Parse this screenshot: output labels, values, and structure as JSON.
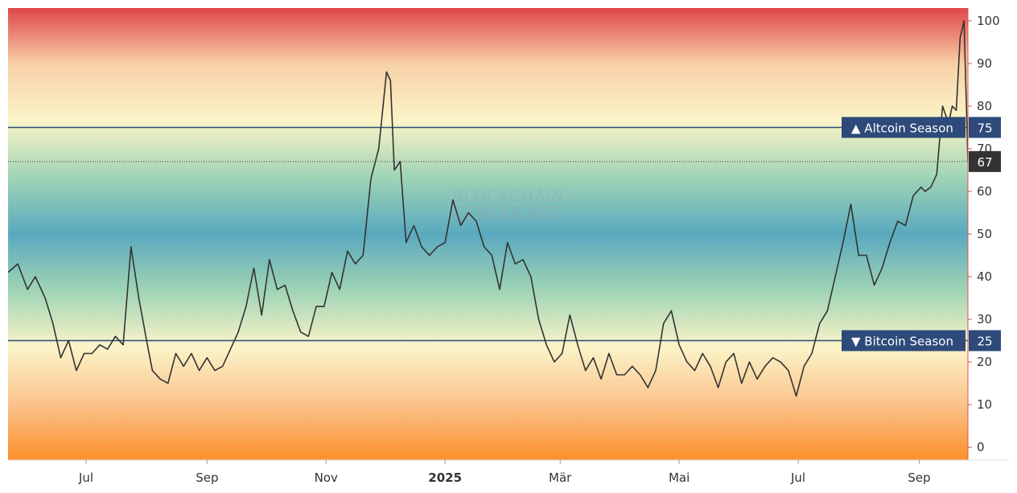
{
  "chart_data": {
    "type": "line",
    "watermark": [
      "BLOCKCHAIN",
      "CENTER.NET"
    ],
    "ylim": [
      -3,
      103
    ],
    "y_ticks": [
      0,
      10,
      20,
      30,
      40,
      50,
      60,
      70,
      80,
      90,
      100
    ],
    "x_range": [
      "2024-05-22",
      "2025-09-26"
    ],
    "x_ticks": [
      {
        "label": "Jul",
        "date": "2024-07-01",
        "bold": false
      },
      {
        "label": "Sep",
        "date": "2024-09-01",
        "bold": false
      },
      {
        "label": "Nov",
        "date": "2024-11-01",
        "bold": false
      },
      {
        "label": "2025",
        "date": "2025-01-01",
        "bold": true
      },
      {
        "label": "Mär",
        "date": "2025-03-01",
        "bold": false
      },
      {
        "label": "Mai",
        "date": "2025-05-01",
        "bold": false
      },
      {
        "label": "Jul",
        "date": "2025-07-01",
        "bold": false
      },
      {
        "label": "Sep",
        "date": "2025-09-01",
        "bold": false
      }
    ],
    "reference_lines": [
      {
        "value": 75,
        "label": "▲ Altcoin Season",
        "value_label": "75"
      },
      {
        "value": 25,
        "label": "▼ Bitcoin Season",
        "value_label": "25"
      }
    ],
    "current_value": {
      "value": 67,
      "label": "67"
    },
    "colors": {
      "line": "#333333",
      "reference": "#2d4a7a",
      "badge": "#2d4a7a",
      "current_badge": "#333333",
      "gradient": [
        "#e0464a",
        "#f7d1a8",
        "#fbf4c8",
        "#9fd4b5",
        "#5aa9bf",
        "#9fd4b5",
        "#fbf4c8",
        "#fbc38d",
        "#fb8f2a"
      ]
    },
    "series": [
      {
        "x": [
          "2024-05-22",
          "2024-05-27",
          "2024-06-01",
          "2024-06-05",
          "2024-06-10",
          "2024-06-14",
          "2024-06-18",
          "2024-06-22",
          "2024-06-26",
          "2024-06-30",
          "2024-07-04",
          "2024-07-08",
          "2024-07-12",
          "2024-07-16",
          "2024-07-20",
          "2024-07-24",
          "2024-07-28",
          "2024-08-01",
          "2024-08-04",
          "2024-08-08",
          "2024-08-12",
          "2024-08-16",
          "2024-08-20",
          "2024-08-24",
          "2024-08-28",
          "2024-09-01",
          "2024-09-05",
          "2024-09-09",
          "2024-09-13",
          "2024-09-17",
          "2024-09-21",
          "2024-09-25",
          "2024-09-29",
          "2024-10-03",
          "2024-10-07",
          "2024-10-11",
          "2024-10-15",
          "2024-10-19",
          "2024-10-23",
          "2024-10-27",
          "2024-10-31",
          "2024-11-04",
          "2024-11-08",
          "2024-11-12",
          "2024-11-16",
          "2024-11-20",
          "2024-11-24",
          "2024-11-28",
          "2024-12-02",
          "2024-12-04",
          "2024-12-06",
          "2024-12-09",
          "2024-12-12",
          "2024-12-16",
          "2024-12-20",
          "2024-12-24",
          "2024-12-28",
          "2025-01-01",
          "2025-01-05",
          "2025-01-09",
          "2025-01-13",
          "2025-01-17",
          "2025-01-21",
          "2025-01-25",
          "2025-01-29",
          "2025-02-02",
          "2025-02-06",
          "2025-02-10",
          "2025-02-14",
          "2025-02-18",
          "2025-02-22",
          "2025-02-26",
          "2025-03-02",
          "2025-03-06",
          "2025-03-10",
          "2025-03-14",
          "2025-03-18",
          "2025-03-22",
          "2025-03-26",
          "2025-03-30",
          "2025-04-03",
          "2025-04-07",
          "2025-04-11",
          "2025-04-15",
          "2025-04-19",
          "2025-04-23",
          "2025-04-27",
          "2025-05-01",
          "2025-05-05",
          "2025-05-09",
          "2025-05-13",
          "2025-05-17",
          "2025-05-21",
          "2025-05-25",
          "2025-05-29",
          "2025-06-02",
          "2025-06-06",
          "2025-06-10",
          "2025-06-14",
          "2025-06-18",
          "2025-06-22",
          "2025-06-26",
          "2025-06-30",
          "2025-07-04",
          "2025-07-08",
          "2025-07-12",
          "2025-07-16",
          "2025-07-20",
          "2025-07-24",
          "2025-07-28",
          "2025-08-01",
          "2025-08-05",
          "2025-08-09",
          "2025-08-13",
          "2025-08-17",
          "2025-08-21",
          "2025-08-25",
          "2025-08-29",
          "2025-09-02",
          "2025-09-04",
          "2025-09-07",
          "2025-09-10",
          "2025-09-13",
          "2025-09-16",
          "2025-09-18",
          "2025-09-20",
          "2025-09-22",
          "2025-09-24",
          "2025-09-26"
        ],
        "y": [
          41,
          43,
          37,
          40,
          35,
          29,
          21,
          25,
          18,
          22,
          22,
          24,
          23,
          26,
          24,
          47,
          35,
          25,
          18,
          16,
          15,
          22,
          19,
          22,
          18,
          21,
          18,
          19,
          23,
          27,
          33,
          42,
          31,
          44,
          37,
          38,
          32,
          27,
          26,
          33,
          33,
          41,
          37,
          46,
          43,
          45,
          63,
          70,
          88,
          86,
          65,
          67,
          48,
          52,
          47,
          45,
          47,
          48,
          58,
          52,
          55,
          53,
          47,
          45,
          37,
          48,
          43,
          44,
          40,
          30,
          24,
          20,
          22,
          31,
          24,
          18,
          21,
          16,
          22,
          17,
          17,
          19,
          17,
          14,
          18,
          29,
          32,
          24,
          20,
          18,
          22,
          19,
          14,
          20,
          22,
          15,
          20,
          16,
          19,
          21,
          20,
          18,
          12,
          19,
          22,
          29,
          32,
          40,
          48,
          57,
          45,
          45,
          38,
          42,
          48,
          53,
          52,
          59,
          61,
          60,
          61,
          64,
          80,
          76,
          80,
          79,
          96,
          100,
          67
        ]
      }
    ]
  }
}
